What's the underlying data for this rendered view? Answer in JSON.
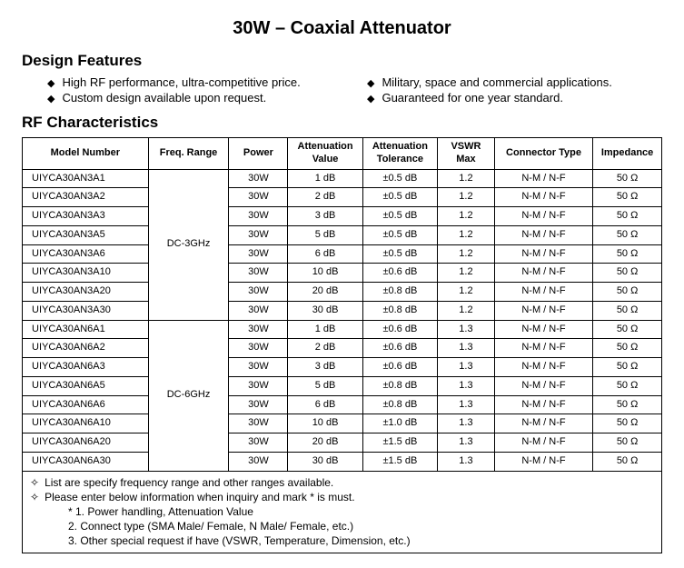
{
  "title": "30W – Coaxial Attenuator",
  "design_features_heading": "Design Features",
  "features": [
    "High RF performance, ultra-competitive price.",
    "Military, space and commercial applications.",
    "Custom design available upon request.",
    "Guaranteed for one year standard."
  ],
  "rf_heading": "RF Characteristics",
  "columns": [
    "Model Number",
    "Freq. Range",
    "Power",
    "Attenuation Value",
    "Attenuation Tolerance",
    "VSWR Max",
    "Connector Type",
    "Impedance"
  ],
  "groups": [
    {
      "freq": "DC-3GHz",
      "rows": [
        {
          "model": "UIYCA30AN3A1",
          "power": "30W",
          "attv": "1 dB",
          "attt": "±0.5 dB",
          "vswr": "1.2",
          "conn": "N-M / N-F",
          "imp": "50 Ω"
        },
        {
          "model": "UIYCA30AN3A2",
          "power": "30W",
          "attv": "2 dB",
          "attt": "±0.5 dB",
          "vswr": "1.2",
          "conn": "N-M / N-F",
          "imp": "50 Ω"
        },
        {
          "model": "UIYCA30AN3A3",
          "power": "30W",
          "attv": "3 dB",
          "attt": "±0.5 dB",
          "vswr": "1.2",
          "conn": "N-M / N-F",
          "imp": "50 Ω"
        },
        {
          "model": "UIYCA30AN3A5",
          "power": "30W",
          "attv": "5 dB",
          "attt": "±0.5 dB",
          "vswr": "1.2",
          "conn": "N-M / N-F",
          "imp": "50 Ω"
        },
        {
          "model": "UIYCA30AN3A6",
          "power": "30W",
          "attv": "6 dB",
          "attt": "±0.5 dB",
          "vswr": "1.2",
          "conn": "N-M / N-F",
          "imp": "50 Ω"
        },
        {
          "model": "UIYCA30AN3A10",
          "power": "30W",
          "attv": "10 dB",
          "attt": "±0.6 dB",
          "vswr": "1.2",
          "conn": "N-M / N-F",
          "imp": "50 Ω"
        },
        {
          "model": "UIYCA30AN3A20",
          "power": "30W",
          "attv": "20 dB",
          "attt": "±0.8 dB",
          "vswr": "1.2",
          "conn": "N-M / N-F",
          "imp": "50 Ω"
        },
        {
          "model": "UIYCA30AN3A30",
          "power": "30W",
          "attv": "30 dB",
          "attt": "±0.8 dB",
          "vswr": "1.2",
          "conn": "N-M / N-F",
          "imp": "50 Ω"
        }
      ]
    },
    {
      "freq": "DC-6GHz",
      "rows": [
        {
          "model": "UIYCA30AN6A1",
          "power": "30W",
          "attv": "1 dB",
          "attt": "±0.6 dB",
          "vswr": "1.3",
          "conn": "N-M / N-F",
          "imp": "50 Ω"
        },
        {
          "model": "UIYCA30AN6A2",
          "power": "30W",
          "attv": "2 dB",
          "attt": "±0.6 dB",
          "vswr": "1.3",
          "conn": "N-M / N-F",
          "imp": "50 Ω"
        },
        {
          "model": "UIYCA30AN6A3",
          "power": "30W",
          "attv": "3 dB",
          "attt": "±0.6 dB",
          "vswr": "1.3",
          "conn": "N-M / N-F",
          "imp": "50 Ω"
        },
        {
          "model": "UIYCA30AN6A5",
          "power": "30W",
          "attv": "5 dB",
          "attt": "±0.8 dB",
          "vswr": "1.3",
          "conn": "N-M / N-F",
          "imp": "50 Ω"
        },
        {
          "model": "UIYCA30AN6A6",
          "power": "30W",
          "attv": "6 dB",
          "attt": "±0.8 dB",
          "vswr": "1.3",
          "conn": "N-M / N-F",
          "imp": "50 Ω"
        },
        {
          "model": "UIYCA30AN6A10",
          "power": "30W",
          "attv": "10 dB",
          "attt": "±1.0 dB",
          "vswr": "1.3",
          "conn": "N-M / N-F",
          "imp": "50 Ω"
        },
        {
          "model": "UIYCA30AN6A20",
          "power": "30W",
          "attv": "20 dB",
          "attt": "±1.5 dB",
          "vswr": "1.3",
          "conn": "N-M / N-F",
          "imp": "50 Ω"
        },
        {
          "model": "UIYCA30AN6A30",
          "power": "30W",
          "attv": "30 dB",
          "attt": "±1.5 dB",
          "vswr": "1.3",
          "conn": "N-M / N-F",
          "imp": "50 Ω"
        }
      ]
    }
  ],
  "footer": {
    "l1": "List are specify frequency range and other ranges available.",
    "l2": "Please enter below information when inquiry and mark * is must.",
    "l3": "* 1. Power handling, Attenuation Value",
    "l4": "2. Connect type (SMA Male/ Female, N Male/ Female, etc.)",
    "l5": "3. Other special request if have (VSWR, Temperature, Dimension, etc.)"
  }
}
